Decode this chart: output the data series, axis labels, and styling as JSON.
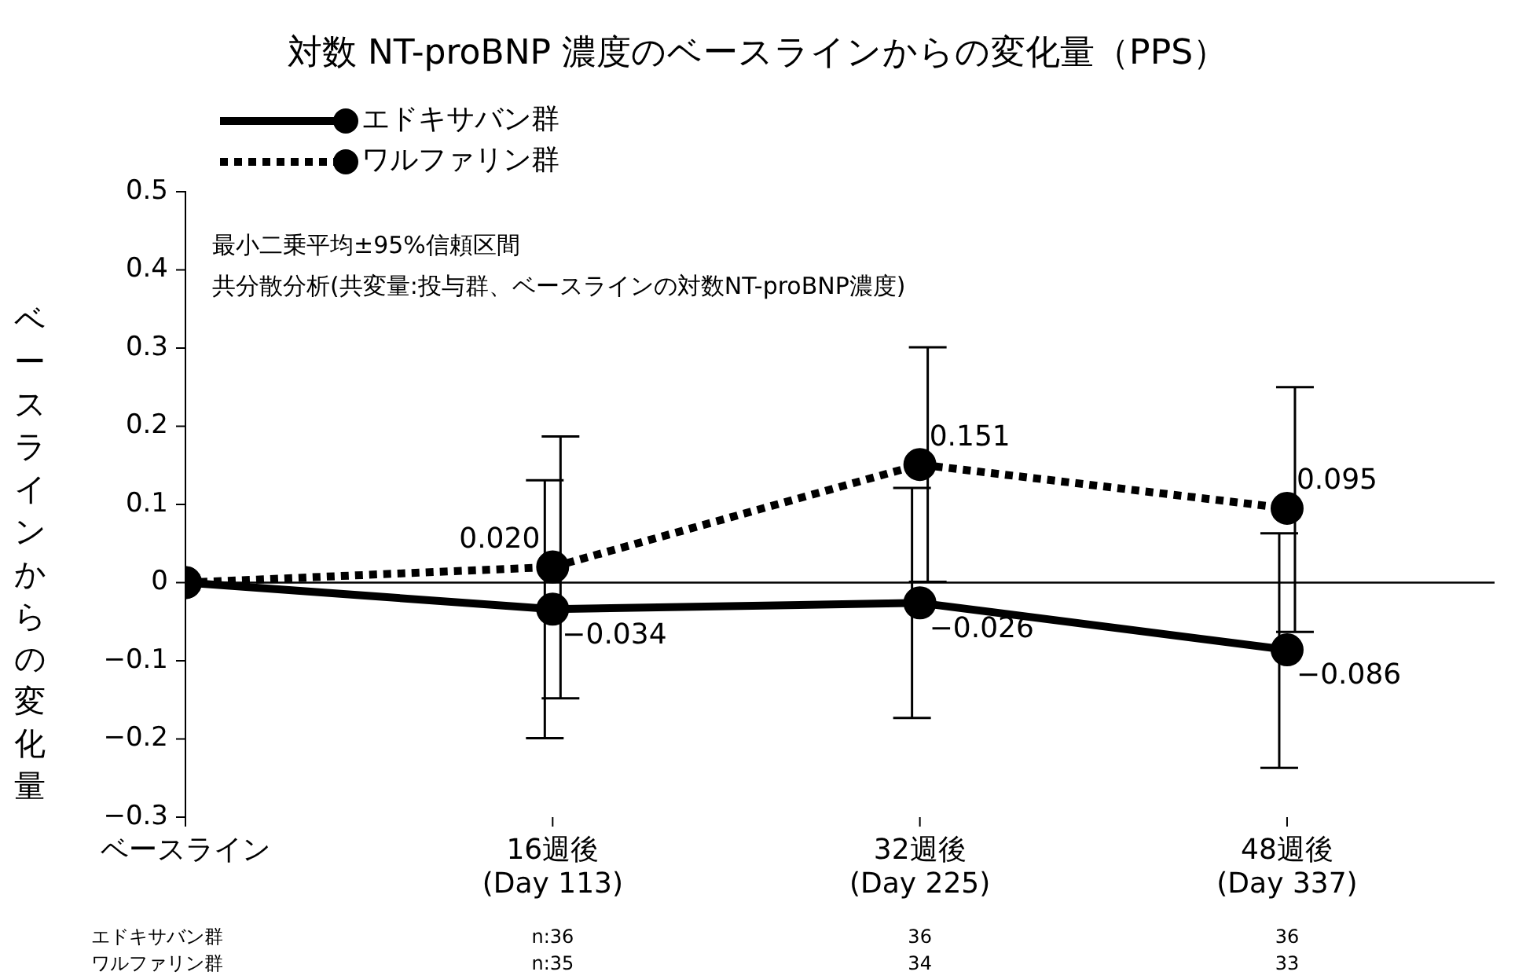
{
  "chart_data": {
    "type": "line",
    "title": "対数 NT-proBNP 濃度のベースラインからの変化量（PPS）",
    "ylabel": "ベースラインからの変化量",
    "categories": [
      "ベースライン",
      "16週後\n(Day 113)",
      "32週後\n(Day 225)",
      "48週後\n(Day 337)"
    ],
    "series": [
      {
        "name": "エドキサバン群",
        "color": "#000000",
        "line_style": "solid",
        "values": [
          0,
          -0.034,
          -0.026,
          -0.086
        ],
        "errors": [
          null,
          [
            -0.199,
            0.131
          ],
          [
            -0.173,
            0.121
          ],
          [
            -0.237,
            0.063
          ]
        ],
        "value_labels": [
          null,
          "−0.034",
          "−0.026",
          "−0.086"
        ]
      },
      {
        "name": "ワルファリン群",
        "color": "#000000",
        "line_style": "dotted",
        "values": [
          0,
          0.02,
          0.151,
          0.095
        ],
        "errors": [
          null,
          [
            -0.148,
            0.187
          ],
          [
            0.001,
            0.301
          ],
          [
            -0.063,
            0.25
          ]
        ],
        "value_labels": [
          null,
          "0.020",
          "0.151",
          "0.095"
        ]
      }
    ],
    "ylim": [
      -0.3,
      0.5
    ],
    "yticks": [
      {
        "value": -0.3,
        "label": "−0.3"
      },
      {
        "value": -0.2,
        "label": "−0.2"
      },
      {
        "value": -0.1,
        "label": "−0.1"
      },
      0,
      0.1,
      0.2,
      0.3,
      0.4,
      0.5
    ],
    "ref_lines": [
      {
        "axis": "y",
        "value": 0,
        "color": "#000000"
      }
    ],
    "marker": "circle",
    "legend": "top left",
    "annotations": [
      "最小二乗平均±95%信頼区間",
      "共分散分析(共変量:投与群、ベースラインの対数NT-proBNP濃度)",
      "エドキサバン群",
      "n:36",
      "36",
      "36",
      "ワルファリン群",
      "n:35",
      "34",
      "33"
    ]
  }
}
